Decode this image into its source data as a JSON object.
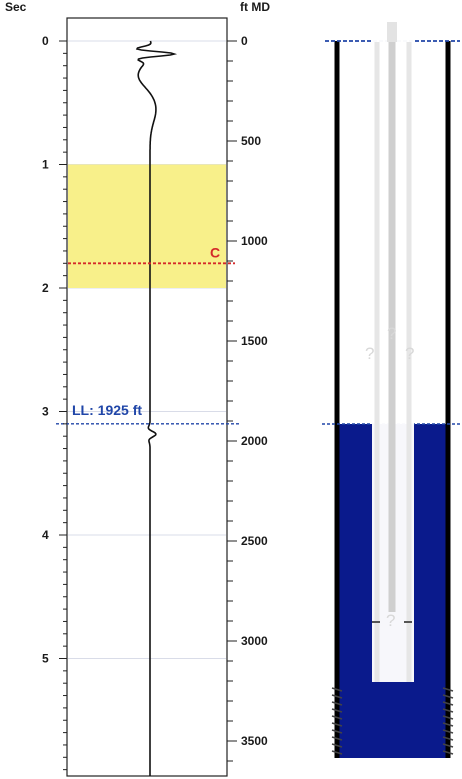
{
  "left_axis": {
    "label": "Sec",
    "ticks": [
      "0",
      "1",
      "2",
      "3",
      "4",
      "5"
    ]
  },
  "right_axis": {
    "label": "ft MD",
    "ticks": [
      "0",
      "500",
      "1000",
      "1500",
      "2000",
      "2500",
      "3000",
      "3500"
    ]
  },
  "annotations": {
    "c_marker": "C",
    "liquid_level": "LL: 1925 ft"
  },
  "well": {
    "question_mark": "?"
  },
  "colors": {
    "highlight_band": "#f8f08a",
    "c_line": "#d42a2a",
    "ll_line": "#2046a8",
    "fluid": "#0a1a8c",
    "trace": "#111111"
  },
  "chart_data": {
    "type": "line",
    "left_axis_unit": "Sec",
    "right_axis_unit": "ft MD",
    "time_range": [
      0,
      6.0
    ],
    "depth_range": [
      0,
      3600
    ],
    "highlight_band_sec": [
      1.0,
      2.0
    ],
    "c_marker_sec": 1.8,
    "liquid_level_ft": 1925,
    "liquid_level_sec": 3.1,
    "tubing_bottom_ft": 3250
  }
}
